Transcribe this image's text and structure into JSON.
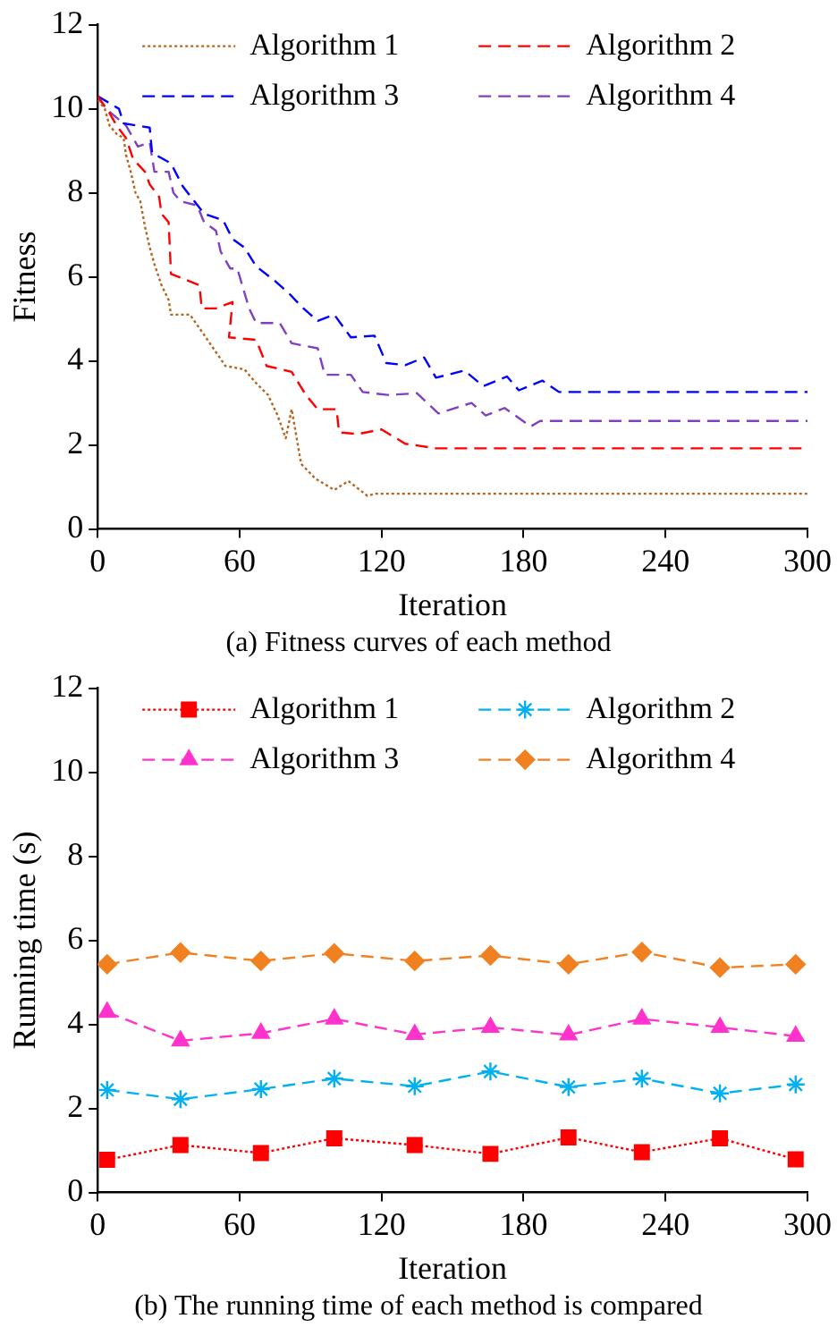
{
  "chart_data": [
    {
      "type": "line",
      "xlabel": "Iteration",
      "ylabel": "Fitness",
      "annotations": [
        "(a) Fitness curves of each method"
      ],
      "xlim": [
        0,
        300
      ],
      "xticks": [
        0,
        60,
        120,
        180,
        240,
        300
      ],
      "ylim": [
        0,
        12
      ],
      "yticks": [
        0,
        2,
        4,
        6,
        8,
        10,
        12
      ],
      "grid": false,
      "legend": "top",
      "marker": "none",
      "series": [
        {
          "name": "Algorithm 1",
          "color": "#b5651d",
          "line_style": "dotted",
          "x": [
            0,
            3,
            5,
            8,
            11,
            12,
            14,
            16,
            18,
            20,
            22,
            24,
            27,
            30,
            31,
            39,
            44,
            49,
            54,
            62,
            67,
            72,
            76,
            79.5,
            82,
            86,
            92,
            100,
            106,
            114,
            117.5,
            300
          ],
          "values": [
            10.2,
            10,
            9.6,
            9.4,
            9.3,
            8.9,
            8.5,
            8,
            7.8,
            7.2,
            6.7,
            6.3,
            5.8,
            5.45,
            5.1,
            5.1,
            4.7,
            4.29,
            3.88,
            3.8,
            3.47,
            3.19,
            2.71,
            2.16,
            2.85,
            1.55,
            1.2,
            0.93,
            1.14,
            0.79,
            0.84,
            0.84
          ]
        },
        {
          "name": "Algorithm 2",
          "color": "#ff0000",
          "line_style": "dashed",
          "x": [
            0,
            5,
            8,
            12,
            15,
            20,
            22,
            26,
            27,
            30,
            31,
            43,
            44,
            50,
            57,
            55.5,
            67,
            71.4,
            82,
            88,
            93,
            101,
            102,
            110,
            120,
            130,
            143,
            300
          ],
          "values": [
            10.3,
            9.9,
            9.6,
            9.3,
            8.8,
            8.5,
            8.2,
            7.9,
            7.5,
            7.3,
            6.07,
            5.8,
            5.25,
            5.25,
            5.4,
            4.56,
            4.5,
            3.88,
            3.74,
            3.19,
            2.85,
            2.85,
            2.3,
            2.26,
            2.37,
            2.03,
            1.92,
            1.92
          ]
        },
        {
          "name": "Algorithm 3",
          "color": "#0000ff",
          "line_style": "dashed",
          "x": [
            0,
            9,
            11,
            22,
            23,
            31,
            36,
            45,
            53,
            57,
            62,
            67,
            75,
            81,
            86,
            93,
            100,
            107,
            117,
            122,
            130,
            138,
            143,
            155,
            163,
            173,
            178,
            188,
            195,
            300
          ],
          "values": [
            10.3,
            10,
            9.65,
            9.55,
            8.95,
            8.7,
            8.15,
            7.5,
            7.35,
            6.9,
            6.7,
            6.25,
            5.9,
            5.6,
            5.3,
            4.95,
            5.1,
            4.56,
            4.6,
            3.95,
            3.9,
            4.08,
            3.6,
            3.77,
            3.4,
            3.63,
            3.3,
            3.53,
            3.26,
            3.26
          ]
        },
        {
          "name": "Algorithm 4",
          "color": "#8040c0",
          "line_style": "dashed",
          "x": [
            0,
            3.5,
            12,
            17,
            22,
            24,
            30,
            32,
            35,
            42,
            45,
            50,
            52,
            56,
            59,
            64,
            67,
            77,
            82,
            93,
            96,
            107,
            112,
            122.5,
            135,
            144,
            158,
            164,
            172,
            183,
            187,
            300
          ],
          "values": [
            10.3,
            10,
            9.6,
            9.1,
            9.2,
            8.5,
            8.5,
            8,
            7.8,
            7.7,
            7.3,
            7.1,
            6.6,
            6.2,
            6.2,
            5.25,
            4.9,
            4.9,
            4.42,
            4.3,
            3.67,
            3.67,
            3.26,
            3.19,
            3.23,
            2.75,
            3,
            2.7,
            2.88,
            2.44,
            2.57,
            2.57
          ]
        }
      ]
    },
    {
      "type": "line",
      "xlabel": "Iteration",
      "ylabel": "Running time (s)",
      "annotations": [
        "(b) The running time of each method is compared"
      ],
      "xlim": [
        0,
        300
      ],
      "xticks": [
        0,
        60,
        120,
        180,
        240,
        300
      ],
      "ylim": [
        0,
        12
      ],
      "yticks": [
        0,
        2,
        4,
        6,
        8,
        10,
        12
      ],
      "grid": false,
      "legend": "top",
      "x": [
        4,
        35,
        69,
        100,
        134,
        166,
        199,
        230,
        263,
        295
      ],
      "series": [
        {
          "name": "Algorithm 1",
          "color": "#ff0000",
          "marker": "square",
          "line_style": "dotted",
          "values": [
            0.78,
            1.13,
            0.94,
            1.29,
            1.13,
            0.92,
            1.31,
            0.96,
            1.29,
            0.79
          ]
        },
        {
          "name": "Algorithm 2",
          "color": "#00b0f0",
          "marker": "cross",
          "line_style": "dashed",
          "values": [
            2.44,
            2.22,
            2.46,
            2.71,
            2.53,
            2.88,
            2.51,
            2.71,
            2.36,
            2.57
          ]
        },
        {
          "name": "Algorithm 3",
          "color": "#ff33cc",
          "marker": "triangle",
          "line_style": "dashed",
          "values": [
            4.29,
            3.61,
            3.79,
            4.13,
            3.76,
            3.93,
            3.75,
            4.13,
            3.93,
            3.72
          ]
        },
        {
          "name": "Algorithm 4",
          "color": "#f08020",
          "marker": "diamond",
          "line_style": "dashed",
          "values": [
            5.43,
            5.71,
            5.51,
            5.69,
            5.51,
            5.64,
            5.43,
            5.72,
            5.35,
            5.43
          ]
        }
      ]
    }
  ]
}
